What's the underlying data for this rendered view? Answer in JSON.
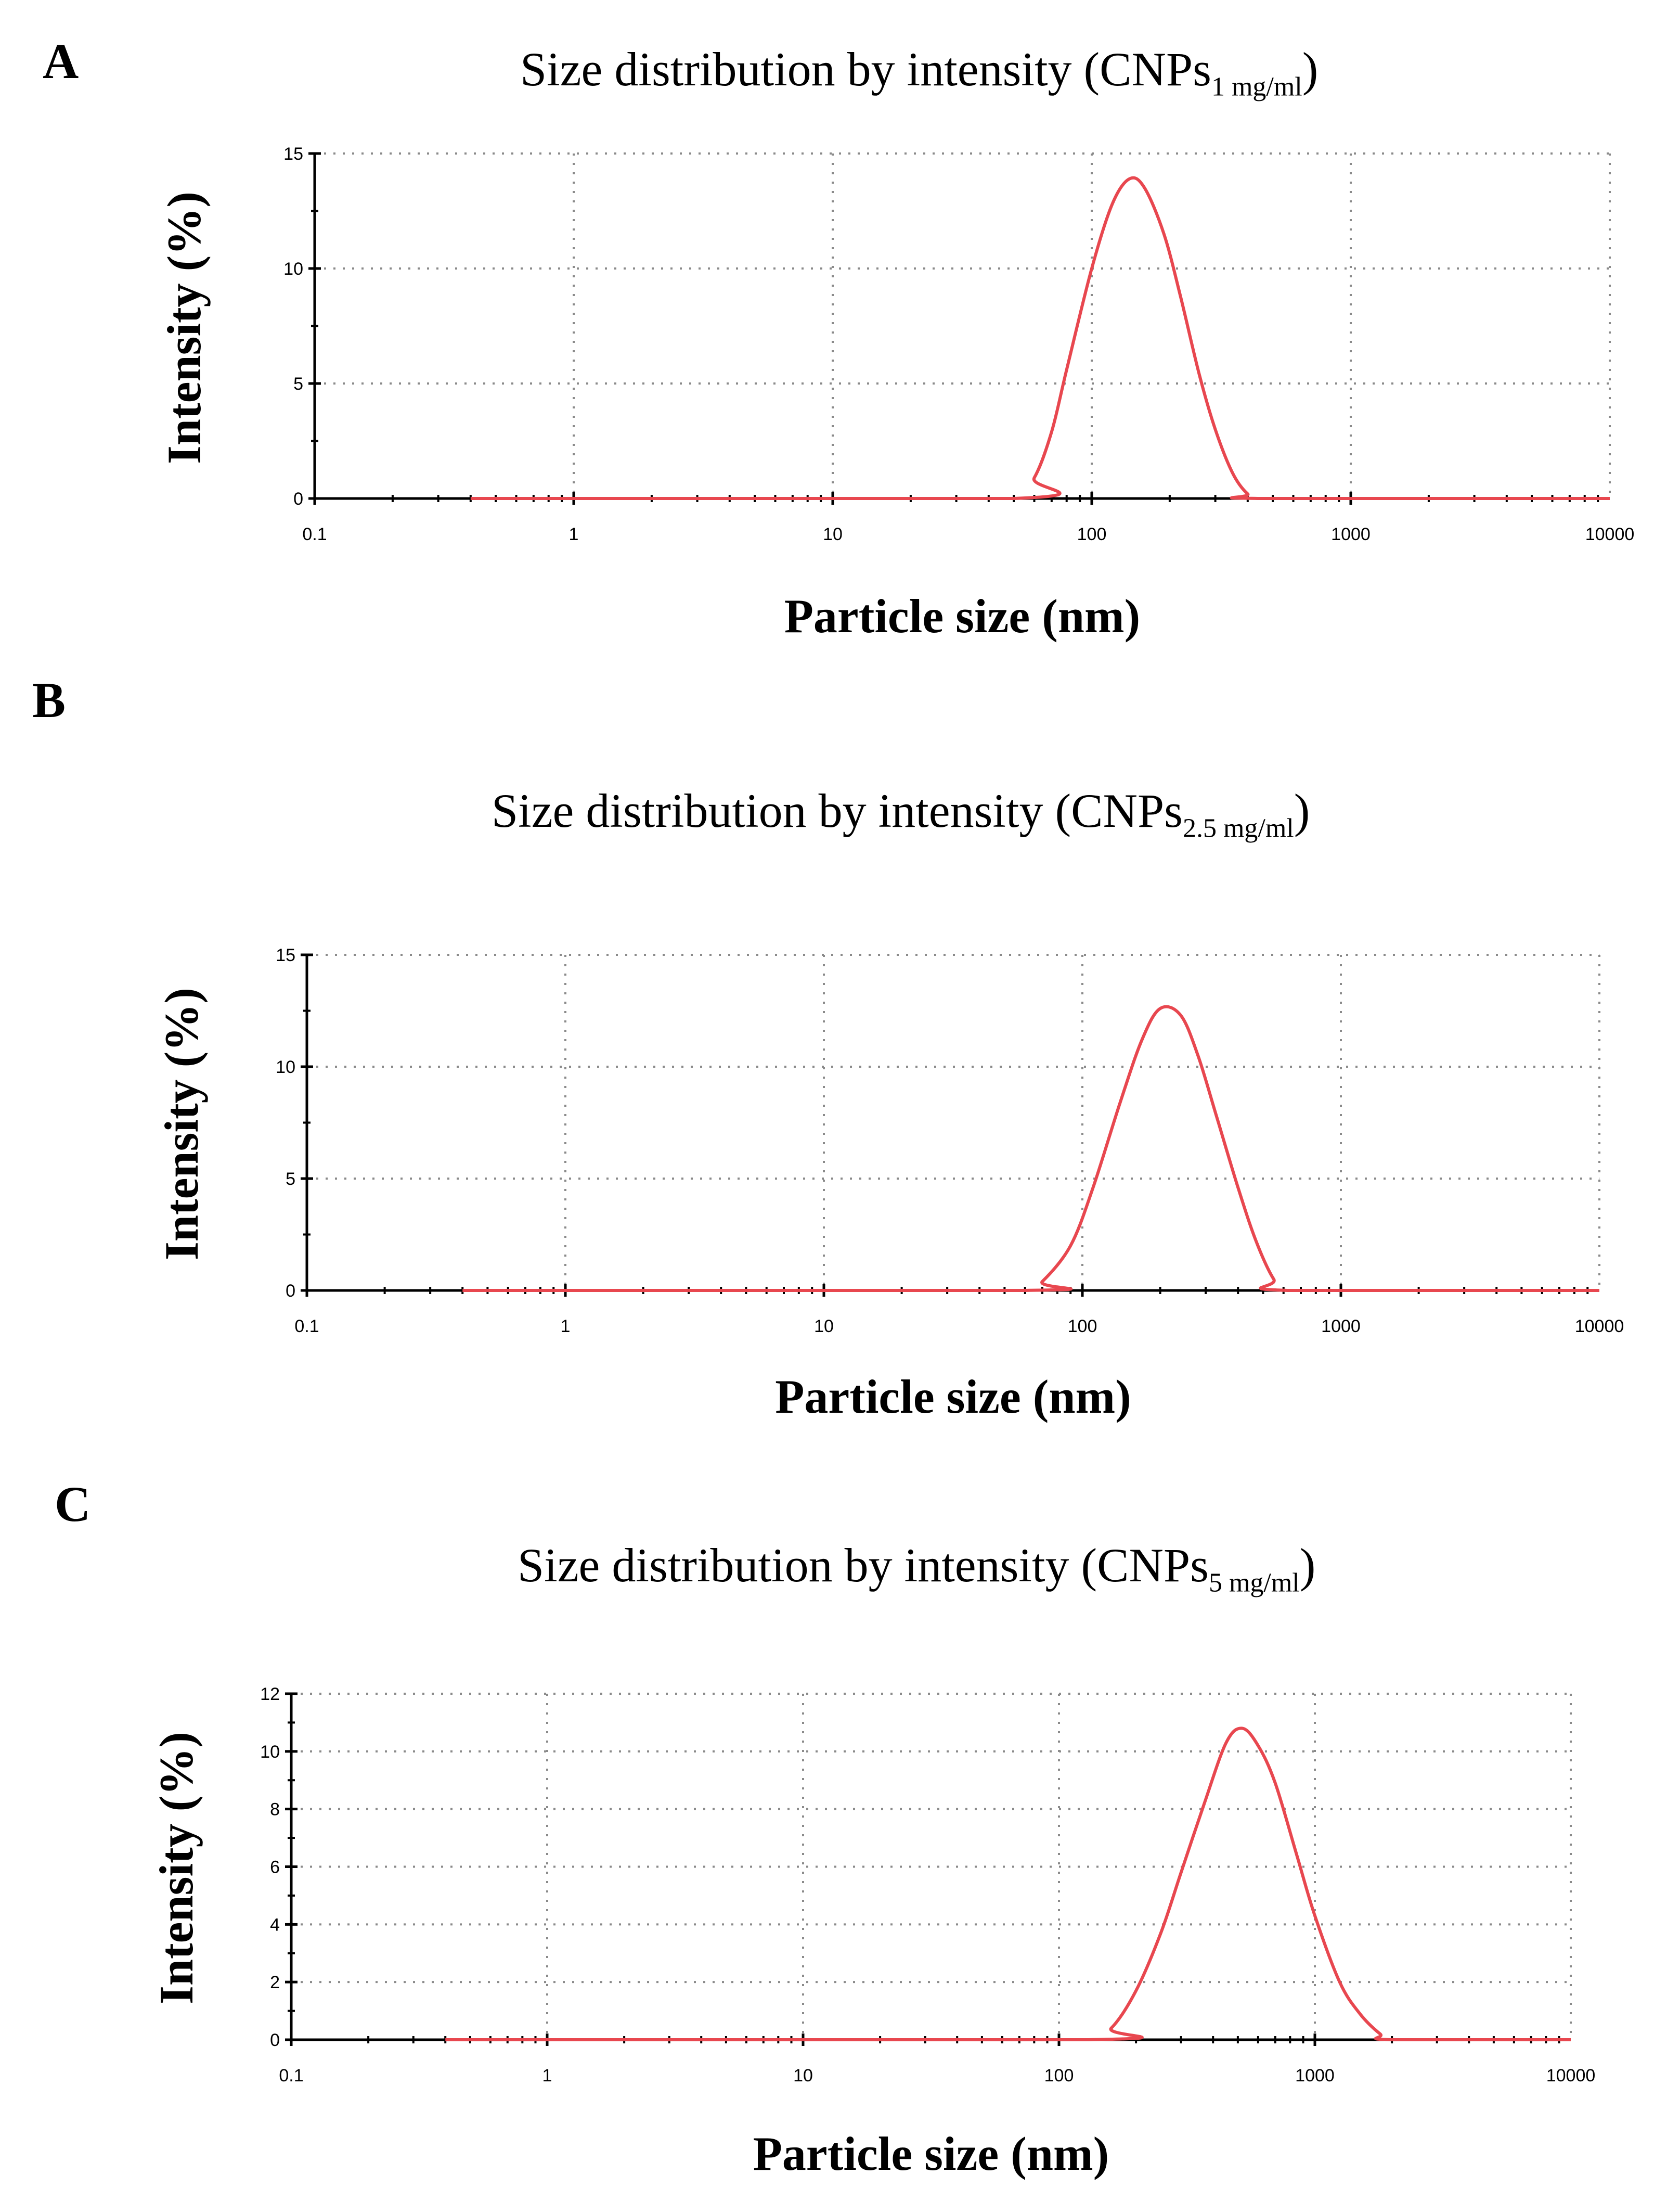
{
  "panels": [
    {
      "letter": "A",
      "title_main": "Size distribution by intensity (CNPs",
      "title_sub": "1 mg/ml",
      "title_close": ")"
    },
    {
      "letter": "B",
      "title_main": "Size distribution by intensity (CNPs",
      "title_sub": "2.5 mg/ml",
      "title_close": ")"
    },
    {
      "letter": "C",
      "title_main": "Size distribution by intensity (CNPs",
      "title_sub": "5 mg/ml",
      "title_close": ")"
    }
  ],
  "colors": {
    "curve": "#e8474f",
    "axis": "#000000",
    "grid": "#8a8a8a"
  },
  "chart_data": [
    {
      "type": "line",
      "title": "Size distribution by intensity (CNPs1 mg/ml)",
      "xlabel": "Particle size (nm)",
      "ylabel": "Intensity (%)",
      "xscale": "log",
      "xlim": [
        0.1,
        10000
      ],
      "ylim": [
        0,
        15
      ],
      "xticks": [
        "0.1",
        "1",
        "10",
        "100",
        "1000",
        "10000"
      ],
      "yticks": [
        "0",
        "5",
        "10",
        "15"
      ],
      "grid": true,
      "series": [
        {
          "x": [
            0.4,
            50,
            60,
            70,
            80,
            100,
            120,
            140,
            160,
            190,
            220,
            260,
            300,
            350,
            400,
            450,
            10000
          ],
          "y": [
            0,
            0,
            0.9,
            2.9,
            5.6,
            10.0,
            12.8,
            13.9,
            13.5,
            11.5,
            8.8,
            5.4,
            3.0,
            1.1,
            0.2,
            0,
            0
          ]
        }
      ]
    },
    {
      "type": "line",
      "title": "Size distribution by intensity (CNPs2.5 mg/ml)",
      "xlabel": "Particle size (nm)",
      "ylabel": "Intensity (%)",
      "xscale": "log",
      "xlim": [
        0.1,
        10000
      ],
      "ylim": [
        0,
        15
      ],
      "xticks": [
        "0.1",
        "1",
        "10",
        "100",
        "1000",
        "10000"
      ],
      "yticks": [
        "0",
        "5",
        "10",
        "15"
      ],
      "grid": true,
      "series": [
        {
          "x": [
            0.4,
            60,
            70,
            90,
            110,
            140,
            170,
            200,
            240,
            280,
            330,
            400,
            470,
            550,
            620,
            10000
          ],
          "y": [
            0,
            0,
            0.4,
            2.0,
            4.6,
            8.4,
            11.2,
            12.6,
            12.3,
            10.5,
            7.8,
            4.6,
            2.2,
            0.5,
            0,
            0
          ]
        }
      ]
    },
    {
      "type": "line",
      "title": "Size distribution by intensity (CNPs5 mg/ml)",
      "xlabel": "Particle size (nm)",
      "ylabel": "Intensity (%)",
      "xscale": "log",
      "xlim": [
        0.1,
        10000
      ],
      "ylim": [
        0,
        12
      ],
      "xticks": [
        "0.1",
        "1",
        "10",
        "100",
        "1000",
        "10000"
      ],
      "yticks": [
        "0",
        "2",
        "4",
        "6",
        "8",
        "10",
        "12"
      ],
      "grid": true,
      "series": [
        {
          "x": [
            0.4,
            130,
            160,
            200,
            250,
            300,
            370,
            450,
            520,
            600,
            700,
            850,
            1000,
            1250,
            1500,
            1800,
            2000,
            10000
          ],
          "y": [
            0,
            0,
            0.4,
            1.7,
            3.7,
            5.8,
            8.2,
            10.3,
            10.8,
            10.2,
            8.9,
            6.4,
            4.3,
            2.0,
            0.9,
            0.2,
            0,
            0
          ]
        }
      ]
    }
  ]
}
